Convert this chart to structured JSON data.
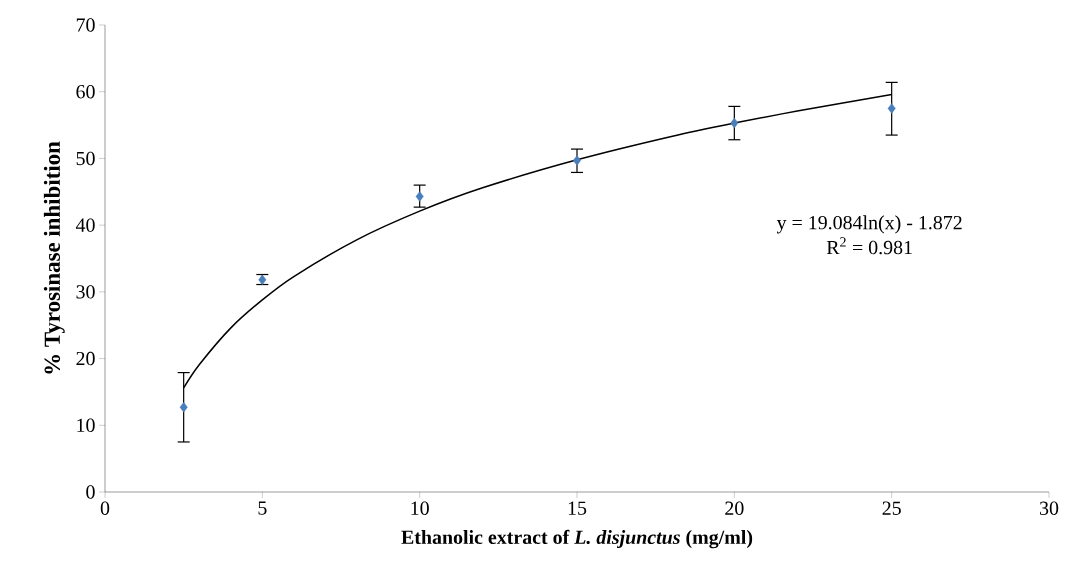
{
  "chart_data": {
    "type": "scatter",
    "xlabel": "Ethanolic extract of *L. disjunctus* (mg/ml)",
    "ylabel": "% Tyrosinase inhibition",
    "xlim": [
      0,
      30
    ],
    "xticks": [
      0,
      5,
      10,
      15,
      20,
      25,
      30
    ],
    "ylim": [
      0,
      70
    ],
    "yticks": [
      0,
      10,
      20,
      30,
      40,
      50,
      60,
      70
    ],
    "grid": false,
    "marker": "diamond",
    "series": [
      {
        "type": "scatter",
        "color": "#4a7ebb",
        "x": [
          2.5,
          5,
          10,
          15,
          20,
          25
        ],
        "values": [
          12.7,
          31.8,
          44.3,
          49.7,
          55.3,
          57.5
        ],
        "errors": [
          [
            7.5,
            17.9
          ],
          [
            31.1,
            32.6
          ],
          [
            42.7,
            46.0
          ],
          [
            47.9,
            51.4
          ],
          [
            52.8,
            57.8
          ],
          [
            53.5,
            61.4
          ]
        ]
      },
      {
        "type": "line",
        "color": "#000000",
        "marker": "none",
        "x": [
          2.5,
          3,
          4,
          5,
          6,
          8,
          10,
          12,
          15,
          18,
          20,
          22,
          25
        ],
        "values": [
          15.6,
          19.1,
          24.6,
          28.8,
          32.3,
          37.8,
          42.1,
          45.6,
          49.8,
          53.3,
          55.3,
          57.1,
          59.6
        ]
      }
    ],
    "annotations": [
      "y = 19.084ln(x) - 1.872",
      "R$^{2}$ = 0.981"
    ]
  }
}
